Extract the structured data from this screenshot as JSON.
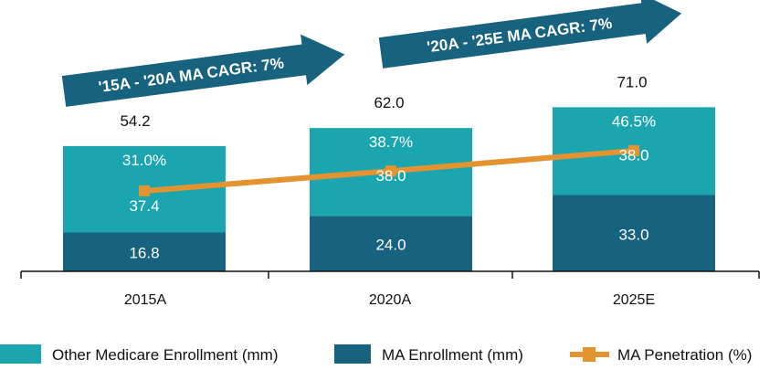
{
  "chart_data": {
    "type": "bar",
    "stacked": true,
    "categories": [
      "2015A",
      "2020A",
      "2025E"
    ],
    "series": [
      {
        "name": "MA Enrollment (mm)",
        "values": [
          16.8,
          24.0,
          33.0
        ],
        "color": "#17627F",
        "labels": [
          "16.8",
          "24.0",
          "33.0"
        ]
      },
      {
        "name": "Other Medicare Enrollment (mm)",
        "values": [
          37.4,
          38.0,
          38.0
        ],
        "color": "#1BA6AF",
        "labels": [
          "37.4",
          "38.0",
          "38.0"
        ]
      }
    ],
    "totals": [
      "54.2",
      "62.0",
      "71.0"
    ],
    "line_series": {
      "name": "MA Penetration (%)",
      "type": "line",
      "axis": "secondary",
      "values": [
        31.0,
        38.7,
        46.5
      ],
      "labels": [
        "31.0%",
        "38.7%",
        "46.5%"
      ],
      "color": "#E39330",
      "marker": "square"
    },
    "annotations": [
      "'15A - '20A MA CAGR: 7%",
      "'20A - '25E MA CAGR: 7%"
    ],
    "annotation_color": "#17627F",
    "legend": {
      "placement": "bottom",
      "entries": [
        "Other Medicare Enrollment (mm)",
        "MA Enrollment (mm)",
        "MA Penetration (%)"
      ]
    },
    "grid": false
  }
}
